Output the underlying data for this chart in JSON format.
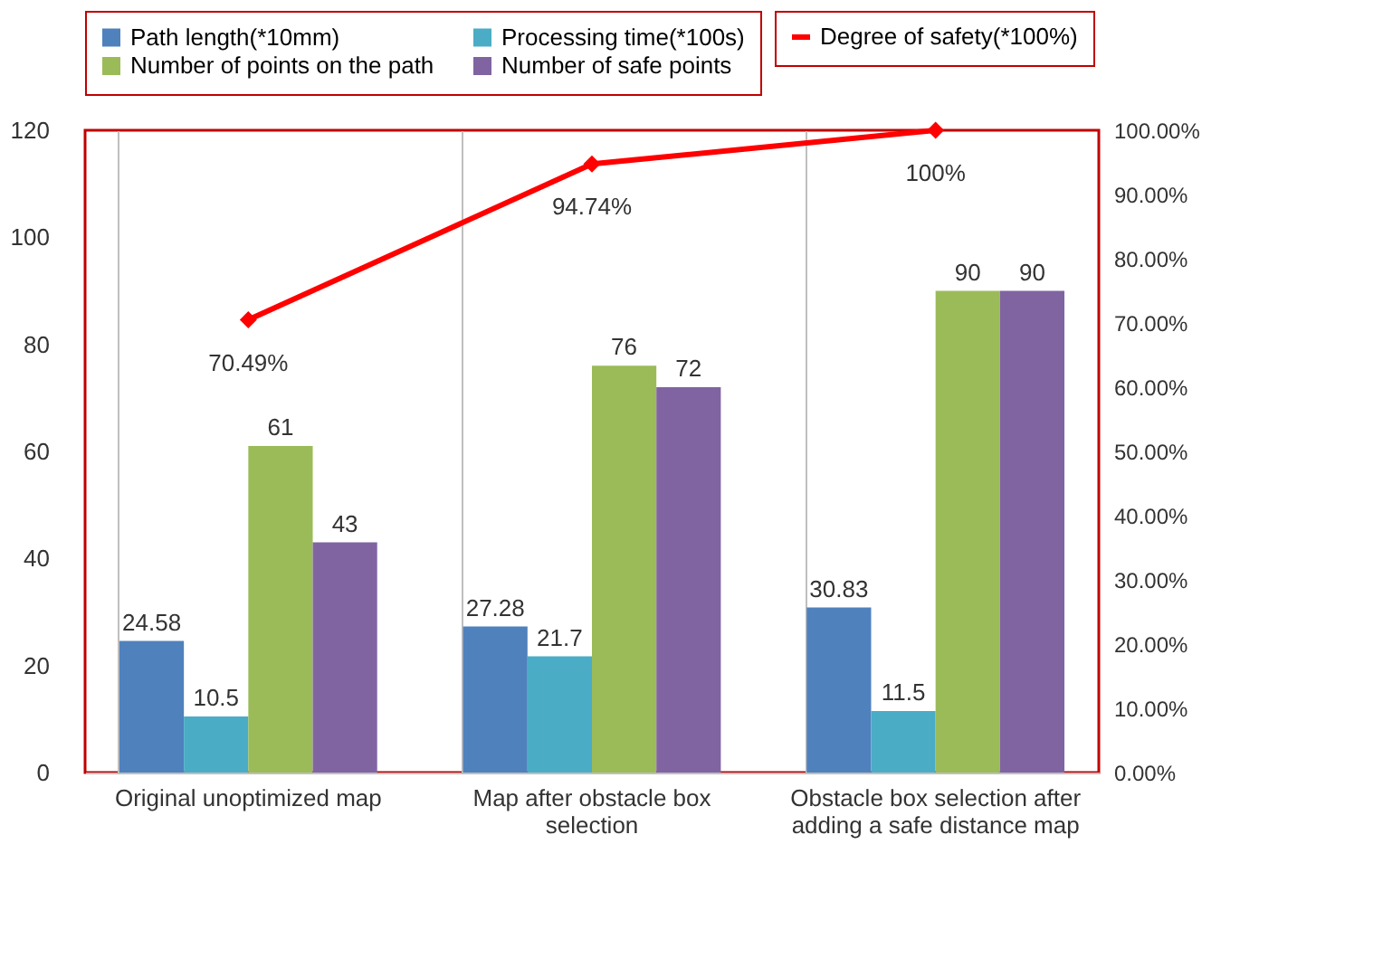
{
  "chart_data": {
    "type": "bar",
    "categories": [
      "Original unoptimized map",
      "Map after obstacle box selection",
      "Obstacle box selection after adding a safe distance map"
    ],
    "series": [
      {
        "name": "Path length(*10mm)",
        "color": "#4f81bd",
        "values": [
          24.58,
          27.28,
          30.83
        ]
      },
      {
        "name": "Processing time(*100s)",
        "color": "#4bacc6",
        "values": [
          10.5,
          21.7,
          11.5
        ]
      },
      {
        "name": "Number of points on the path",
        "color": "#9bbb59",
        "values": [
          61,
          76,
          90
        ]
      },
      {
        "name": "Number of safe points",
        "color": "#8064a2",
        "values": [
          43,
          72,
          90
        ]
      },
      {
        "name": "Degree of safety(*100%)",
        "type": "line",
        "axis": "y2",
        "color": "#ff0000",
        "marker": "diamond",
        "values": [
          70.49,
          94.74,
          100
        ],
        "value_labels": [
          "70.49%",
          "94.74%",
          "100%"
        ]
      }
    ],
    "data_labels": true,
    "ylim": [
      0,
      120
    ],
    "yticks": [
      0,
      20,
      40,
      60,
      80,
      100,
      120
    ],
    "y2lim": [
      0,
      100
    ],
    "y2ticks": [
      {
        "value": 0,
        "label": "0.00%"
      },
      {
        "value": 10,
        "label": "10.00%"
      },
      {
        "value": 20,
        "label": "20.00%"
      },
      {
        "value": 30,
        "label": "30.00%"
      },
      {
        "value": 40,
        "label": "40.00%"
      },
      {
        "value": 50,
        "label": "50.00%"
      },
      {
        "value": 60,
        "label": "60.00%"
      },
      {
        "value": 70,
        "label": "70.00%"
      },
      {
        "value": 80,
        "label": "80.00%"
      },
      {
        "value": 90,
        "label": "90.00%"
      },
      {
        "value": 100,
        "label": "100.00%"
      }
    ],
    "grid": "x",
    "legend": "top"
  }
}
